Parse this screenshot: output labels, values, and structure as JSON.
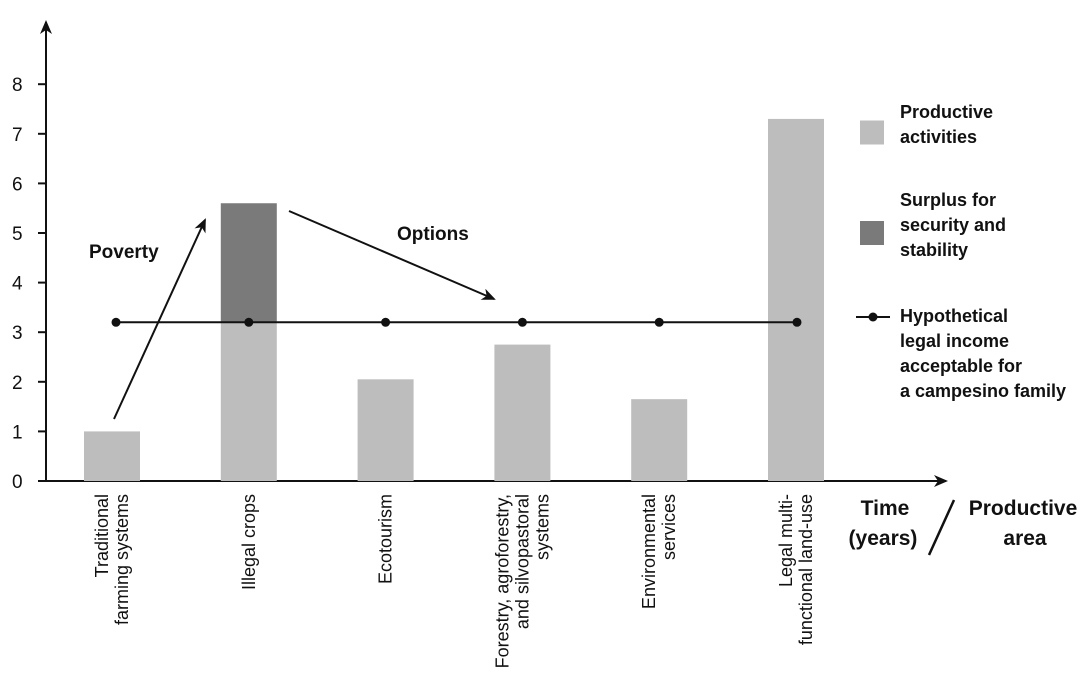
{
  "chart_data": {
    "type": "bar",
    "categories": [
      [
        "Traditional",
        "farming systems"
      ],
      [
        "Illegal crops"
      ],
      [
        "Ecotourism"
      ],
      [
        "Forestry, agroforestry,",
        "and silvopastoral",
        "systems"
      ],
      [
        "Environmental",
        "services"
      ],
      [
        "Legal multi-",
        "functional land-use"
      ]
    ],
    "series": [
      {
        "name": "Productive activities",
        "values": [
          1.0,
          3.2,
          2.05,
          2.75,
          1.65,
          7.3
        ],
        "color": "#bdbdbd"
      },
      {
        "name": "Surplus for security and stability",
        "values": [
          0,
          2.4,
          0,
          0,
          0,
          0
        ],
        "color": "#7a7a7a"
      }
    ],
    "line": {
      "name": "Hypothetical legal income acceptable for a campesino family",
      "values": [
        3.2,
        3.2,
        3.2,
        3.2,
        3.2,
        3.2
      ]
    },
    "ylim": [
      0,
      9
    ],
    "yticks": [
      0,
      1,
      2,
      3,
      4,
      5,
      6,
      7,
      8
    ],
    "stacked": true,
    "legend": [
      {
        "lines": [
          "Productive",
          "activities"
        ],
        "swatch": "bar",
        "color": "#bdbdbd"
      },
      {
        "lines": [
          "Surplus for",
          "security and",
          "stability"
        ],
        "swatch": "bar",
        "color": "#7a7a7a"
      },
      {
        "lines": [
          "Hypothetical",
          "legal income",
          "acceptable for",
          "a campesino family"
        ],
        "swatch": "line"
      }
    ],
    "legend_position": "right",
    "annotations": {
      "poverty": "Poverty",
      "options": "Options"
    },
    "xlabel": {
      "left": [
        "Time",
        "(years)"
      ],
      "right": [
        "Productive",
        "area"
      ]
    }
  }
}
